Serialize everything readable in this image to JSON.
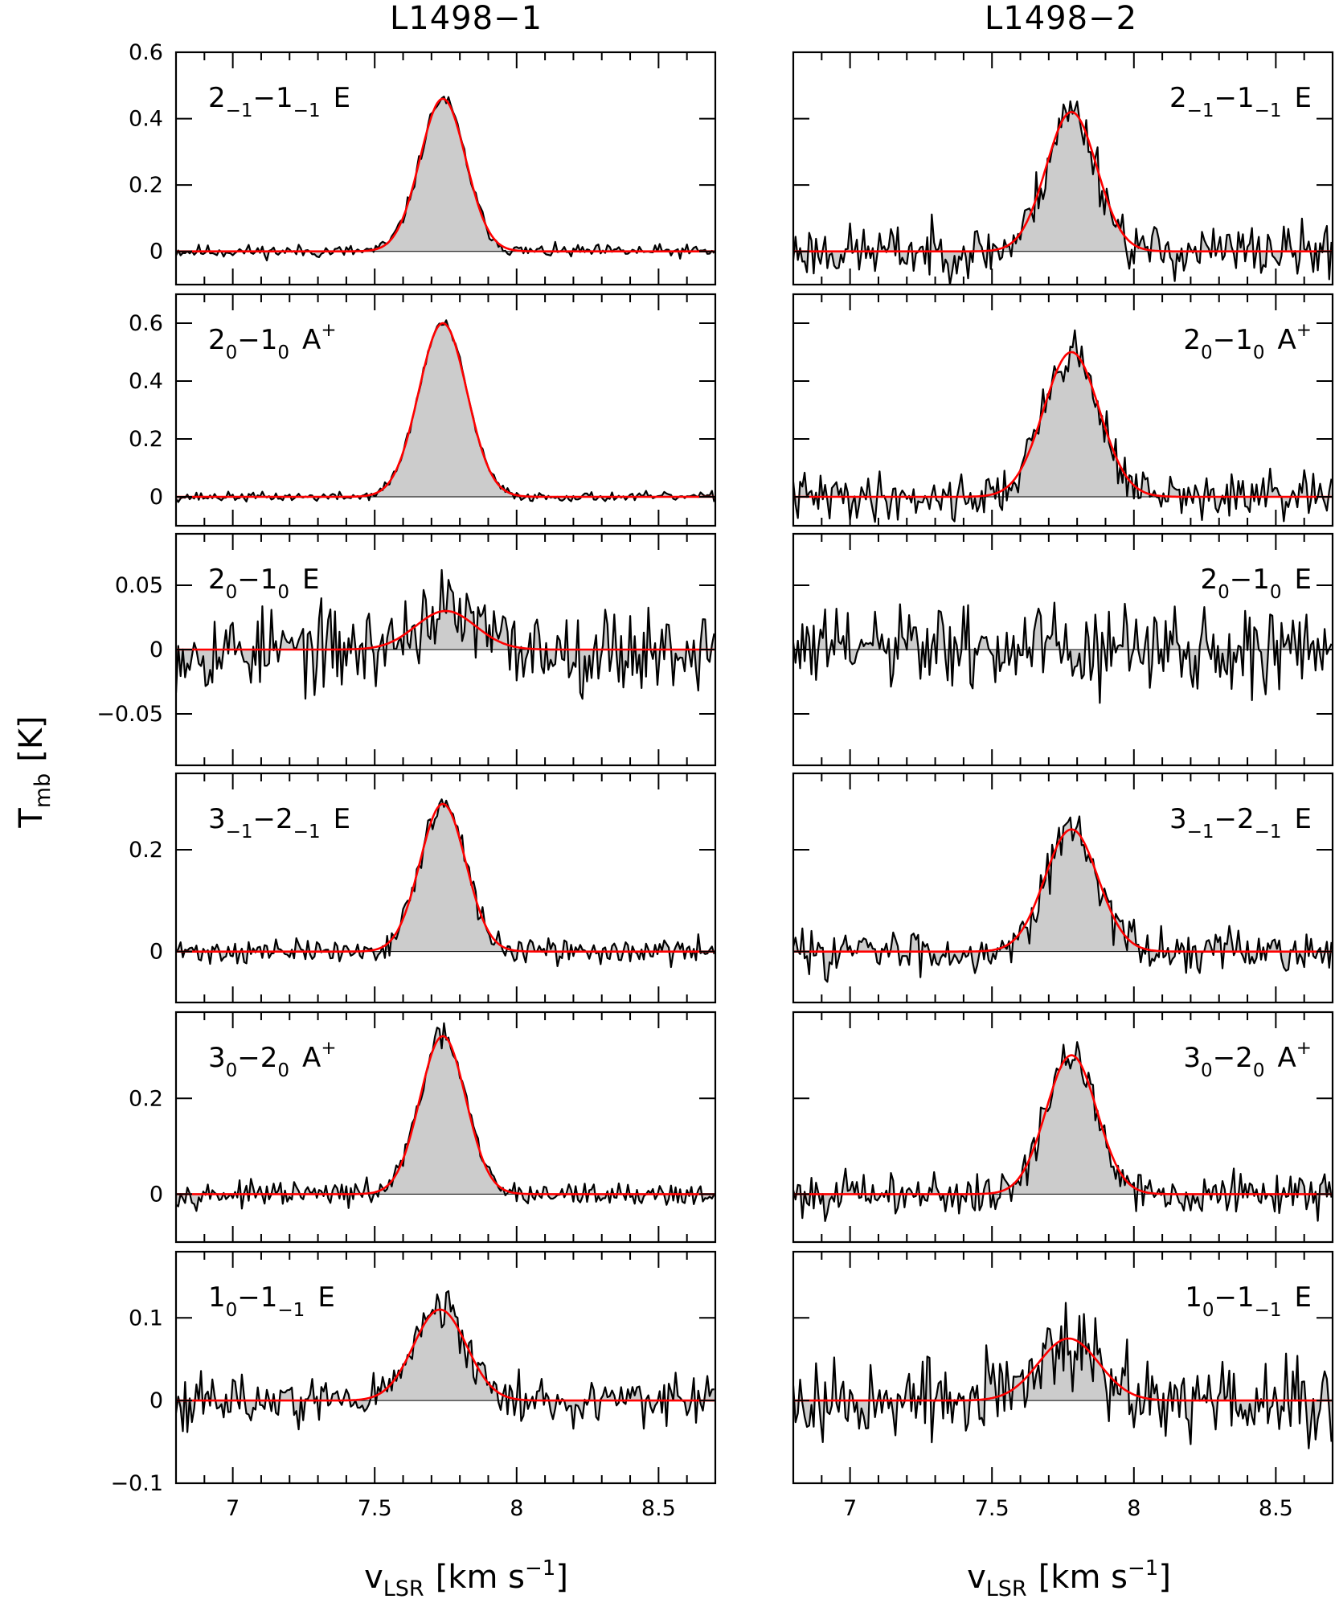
{
  "figure": {
    "columns": [
      "L1498−1",
      "L1498−2"
    ],
    "ylabel": "T",
    "ylabel_sub": "mb",
    "ylabel_unit": "[K]",
    "xlabel": "v",
    "xlabel_sub": "LSR",
    "xlabel_unit": "[km s",
    "xlabel_sup": "−1",
    "xlabel_close": "]"
  },
  "colors": {
    "spectrum": "#000000",
    "fill": "#cccccc",
    "fit": "#ff0000"
  },
  "chart_data": [
    {
      "type": "line",
      "source": "L1498−1",
      "line": {
        "main": "2",
        "sub1": "−1",
        "mid": "−1",
        "sub2": "−1",
        "sym": "E",
        "sup": ""
      },
      "xlim": [
        6.8,
        8.7
      ],
      "ylim": [
        -0.1,
        0.6
      ],
      "yticks": [
        0,
        0.2,
        0.4,
        0.6
      ],
      "yticklabels": [
        "0",
        "0.2",
        "0.4",
        "0.6"
      ],
      "fit": {
        "amp": 0.46,
        "center": 7.74,
        "fwhm": 0.19
      },
      "noise": 0.01,
      "seed": 11
    },
    {
      "type": "line",
      "source": "L1498−2",
      "line": {
        "main": "2",
        "sub1": "−1",
        "mid": "−1",
        "sub2": "−1",
        "sym": "E",
        "sup": ""
      },
      "xlim": [
        6.8,
        8.7
      ],
      "ylim": [
        -0.1,
        0.6
      ],
      "yticks": [
        0,
        0.2,
        0.4,
        0.6
      ],
      "yticklabels": [],
      "fit": {
        "amp": 0.42,
        "center": 7.78,
        "fwhm": 0.21
      },
      "noise": 0.04,
      "seed": 23
    },
    {
      "type": "line",
      "source": "L1498−1",
      "line": {
        "main": "2",
        "sub1": "0",
        "mid": "−1",
        "sub2": "0",
        "sym": "A",
        "sup": "+"
      },
      "xlim": [
        6.8,
        8.7
      ],
      "ylim": [
        -0.1,
        0.7
      ],
      "yticks": [
        0,
        0.2,
        0.4,
        0.6
      ],
      "yticklabels": [
        "0",
        "0.2",
        "0.4",
        "0.6"
      ],
      "fit": {
        "amp": 0.6,
        "center": 7.74,
        "fwhm": 0.2
      },
      "noise": 0.008,
      "seed": 37
    },
    {
      "type": "line",
      "source": "L1498−2",
      "line": {
        "main": "2",
        "sub1": "0",
        "mid": "−1",
        "sub2": "0",
        "sym": "A",
        "sup": "+"
      },
      "xlim": [
        6.8,
        8.7
      ],
      "ylim": [
        -0.1,
        0.7
      ],
      "yticks": [
        0,
        0.2,
        0.4,
        0.6
      ],
      "yticklabels": [],
      "fit": {
        "amp": 0.5,
        "center": 7.78,
        "fwhm": 0.23
      },
      "noise": 0.04,
      "seed": 41
    },
    {
      "type": "line",
      "source": "L1498−1",
      "line": {
        "main": "2",
        "sub1": "0",
        "mid": "−1",
        "sub2": "0",
        "sym": "E",
        "sup": ""
      },
      "xlim": [
        6.8,
        8.7
      ],
      "ylim": [
        -0.09,
        0.09
      ],
      "yticks": [
        -0.05,
        0,
        0.05
      ],
      "yticklabels": [
        "−0.05",
        "0",
        "0.05"
      ],
      "fit": {
        "amp": 0.03,
        "center": 7.75,
        "fwhm": 0.25
      },
      "noise": 0.016,
      "seed": 53
    },
    {
      "type": "line",
      "source": "L1498−2",
      "line": {
        "main": "2",
        "sub1": "0",
        "mid": "−1",
        "sub2": "0",
        "sym": "E",
        "sup": ""
      },
      "xlim": [
        6.8,
        8.7
      ],
      "ylim": [
        -0.09,
        0.09
      ],
      "yticks": [
        -0.05,
        0,
        0.05
      ],
      "yticklabels": [],
      "fit": null,
      "noise": 0.017,
      "seed": 61
    },
    {
      "type": "line",
      "source": "L1498−1",
      "line": {
        "main": "3",
        "sub1": "−1",
        "mid": "−2",
        "sub2": "−1",
        "sym": "E",
        "sup": ""
      },
      "xlim": [
        6.8,
        8.7
      ],
      "ylim": [
        -0.1,
        0.35
      ],
      "yticks": [
        0,
        0.2
      ],
      "yticklabels": [
        "0",
        "0.2"
      ],
      "fit": {
        "amp": 0.29,
        "center": 7.74,
        "fwhm": 0.19
      },
      "noise": 0.012,
      "seed": 71
    },
    {
      "type": "line",
      "source": "L1498−2",
      "line": {
        "main": "3",
        "sub1": "−1",
        "mid": "−2",
        "sub2": "−1",
        "sym": "E",
        "sup": ""
      },
      "xlim": [
        6.8,
        8.7
      ],
      "ylim": [
        -0.1,
        0.35
      ],
      "yticks": [
        0,
        0.2
      ],
      "yticklabels": [],
      "fit": {
        "amp": 0.24,
        "center": 7.78,
        "fwhm": 0.22
      },
      "noise": 0.022,
      "seed": 83
    },
    {
      "type": "line",
      "source": "L1498−1",
      "line": {
        "main": "3",
        "sub1": "0",
        "mid": "−2",
        "sub2": "0",
        "sym": "A",
        "sup": "+"
      },
      "xlim": [
        6.8,
        8.7
      ],
      "ylim": [
        -0.1,
        0.38
      ],
      "yticks": [
        0,
        0.2
      ],
      "yticklabels": [
        "0",
        "0.2"
      ],
      "fit": {
        "amp": 0.33,
        "center": 7.74,
        "fwhm": 0.19
      },
      "noise": 0.012,
      "seed": 97
    },
    {
      "type": "line",
      "source": "L1498−2",
      "line": {
        "main": "3",
        "sub1": "0",
        "mid": "−2",
        "sub2": "0",
        "sym": "A",
        "sup": "+"
      },
      "xlim": [
        6.8,
        8.7
      ],
      "ylim": [
        -0.1,
        0.38
      ],
      "yticks": [
        0,
        0.2
      ],
      "yticklabels": [],
      "fit": {
        "amp": 0.29,
        "center": 7.78,
        "fwhm": 0.21
      },
      "noise": 0.022,
      "seed": 101
    },
    {
      "type": "line",
      "source": "L1498−1",
      "line": {
        "main": "1",
        "sub1": "0",
        "mid": "−1",
        "sub2": "−1",
        "sym": "E",
        "sup": ""
      },
      "xlim": [
        6.8,
        8.7
      ],
      "ylim": [
        -0.1,
        0.18
      ],
      "yticks": [
        -0.1,
        0,
        0.1
      ],
      "yticklabels": [
        "−0.1",
        "0",
        "0.1"
      ],
      "fit": {
        "amp": 0.11,
        "center": 7.73,
        "fwhm": 0.22
      },
      "noise": 0.015,
      "seed": 113
    },
    {
      "type": "line",
      "source": "L1498−2",
      "line": {
        "main": "1",
        "sub1": "0",
        "mid": "−1",
        "sub2": "−1",
        "sym": "E",
        "sup": ""
      },
      "xlim": [
        6.8,
        8.7
      ],
      "ylim": [
        -0.1,
        0.18
      ],
      "yticks": [
        -0.1,
        0,
        0.1
      ],
      "yticklabels": [],
      "fit": {
        "amp": 0.075,
        "center": 7.77,
        "fwhm": 0.25
      },
      "noise": 0.025,
      "seed": 127
    }
  ],
  "x_axis": {
    "ticks": [
      7,
      7.5,
      8,
      8.5
    ],
    "labels": [
      "7",
      "7.5",
      "8",
      "8.5"
    ],
    "minor_step": 0.1
  }
}
